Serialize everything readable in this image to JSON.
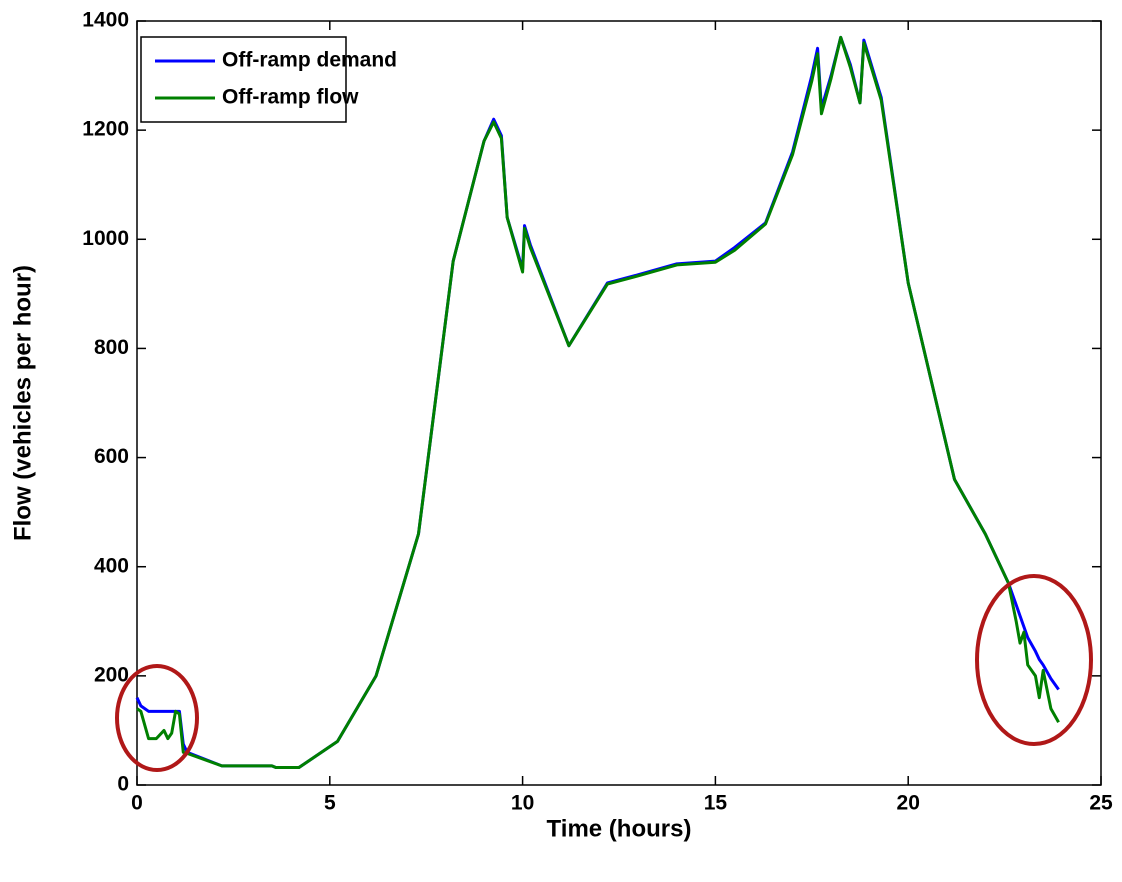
{
  "chart_data": {
    "type": "line",
    "xlabel": "Time (hours)",
    "ylabel": "Flow (vehicles per hour)",
    "x": [
      0,
      0.1,
      0.3,
      0.5,
      0.7,
      0.8,
      0.9,
      1.0,
      1.1,
      1.2,
      1.3,
      2.2,
      3.5,
      3.6,
      4.2,
      5.2,
      6.2,
      7.3,
      8.2,
      9.0,
      9.25,
      9.45,
      9.6,
      10.0,
      10.05,
      10.2,
      11.2,
      12.2,
      13.0,
      14.0,
      15.0,
      15.5,
      16.3,
      17.0,
      17.5,
      17.65,
      17.75,
      18.0,
      18.25,
      18.5,
      18.75,
      18.85,
      19.3,
      20.0,
      21.2,
      22.0,
      22.6,
      22.8,
      22.9,
      23.0,
      23.1,
      23.3,
      23.4,
      23.5,
      23.7,
      23.9
    ],
    "series": [
      {
        "name": "Off-ramp demand",
        "color": "#0000ff",
        "values": [
          160,
          145,
          135,
          135,
          135,
          135,
          135,
          135,
          135,
          75,
          60,
          35,
          35,
          32,
          32,
          80,
          200,
          460,
          960,
          1180,
          1220,
          1190,
          1040,
          945,
          1025,
          990,
          805,
          920,
          935,
          955,
          960,
          985,
          1030,
          1160,
          1300,
          1350,
          1240,
          1300,
          1370,
          1320,
          1250,
          1365,
          1260,
          920,
          560,
          460,
          370,
          330,
          310,
          290,
          270,
          245,
          230,
          220,
          195,
          175
        ]
      },
      {
        "name": "Off-ramp flow",
        "color": "#008000",
        "values": [
          140,
          135,
          85,
          85,
          100,
          85,
          95,
          135,
          130,
          60,
          58,
          35,
          35,
          32,
          32,
          80,
          200,
          460,
          960,
          1180,
          1215,
          1185,
          1040,
          940,
          1020,
          985,
          805,
          918,
          933,
          953,
          958,
          980,
          1028,
          1155,
          1290,
          1340,
          1230,
          1295,
          1370,
          1315,
          1250,
          1360,
          1255,
          920,
          560,
          460,
          370,
          300,
          260,
          280,
          220,
          200,
          160,
          210,
          140,
          115
        ]
      }
    ],
    "xlim": [
      0,
      25
    ],
    "xticks": [
      0,
      5,
      10,
      15,
      20,
      25
    ],
    "ylim": [
      0,
      1400
    ],
    "yticks": [
      0,
      200,
      400,
      600,
      800,
      1000,
      1200,
      1400
    ],
    "legend": "upper left"
  }
}
